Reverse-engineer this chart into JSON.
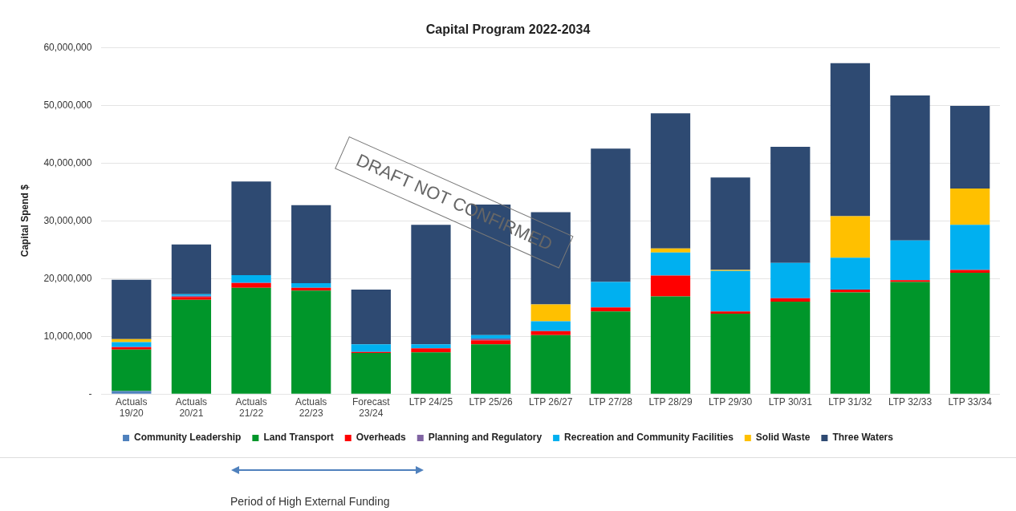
{
  "chart_data": {
    "type": "bar",
    "title": "Capital Program 2022-2034",
    "ylabel": "Capital Spend $",
    "categories": [
      "Actuals\n19/20",
      "Actuals\n20/21",
      "Actuals\n21/22",
      "Actuals\n22/23",
      "Forecast\n23/24",
      "LTP 24/25",
      "LTP 25/26",
      "LTP 26/27",
      "LTP 27/28",
      "LTP 28/29",
      "LTP 29/30",
      "LTP 30/31",
      "LTP 31/32",
      "LTP 32/33",
      "LTP 33/34"
    ],
    "stacked": true,
    "series": [
      {
        "name": "Community Leadership",
        "color": "#4f81bd",
        "values": [
          500000,
          0,
          0,
          0,
          0,
          0,
          0,
          0,
          0,
          0,
          0,
          0,
          0,
          0,
          0
        ]
      },
      {
        "name": "Land Transport",
        "color": "#00962a",
        "values": [
          7200000,
          16300000,
          18400000,
          17900000,
          7100000,
          7200000,
          8600000,
          10200000,
          14300000,
          16900000,
          13900000,
          16000000,
          17600000,
          19400000,
          21000000
        ]
      },
      {
        "name": "Overheads",
        "color": "#ff0000",
        "values": [
          400000,
          500000,
          800000,
          500000,
          200000,
          700000,
          700000,
          700000,
          700000,
          3600000,
          400000,
          600000,
          500000,
          300000,
          500000
        ]
      },
      {
        "name": "Planning and Regulatory",
        "color": "#8064a2",
        "values": [
          100000,
          200000,
          100000,
          0,
          0,
          0,
          300000,
          0,
          0,
          0,
          0,
          0,
          0,
          0,
          0
        ]
      },
      {
        "name": "Recreation and Community Facilities",
        "color": "#00b0f0",
        "values": [
          800000,
          300000,
          1300000,
          800000,
          1300000,
          700000,
          600000,
          1700000,
          4400000,
          4000000,
          7000000,
          6100000,
          5500000,
          6900000,
          7800000
        ]
      },
      {
        "name": "Solid Waste",
        "color": "#ffc000",
        "values": [
          500000,
          0,
          0,
          0,
          0,
          0,
          0,
          2900000,
          0,
          700000,
          200000,
          0,
          7200000,
          0,
          6300000
        ]
      },
      {
        "name": "Three Waters",
        "color": "#2e4a72",
        "values": [
          10300000,
          8600000,
          16200000,
          13500000,
          9500000,
          20700000,
          22600000,
          16000000,
          23100000,
          23400000,
          16000000,
          20100000,
          26500000,
          25100000,
          14300000
        ]
      }
    ],
    "ylim": [
      0,
      60000000
    ],
    "yticks": [
      {
        "value": 0,
        "label": "-"
      },
      {
        "value": 10000000,
        "label": "10,000,000"
      },
      {
        "value": 20000000,
        "label": "20,000,000"
      },
      {
        "value": 30000000,
        "label": "30,000,000"
      },
      {
        "value": 40000000,
        "label": "40,000,000"
      },
      {
        "value": 50000000,
        "label": "50,000,000"
      },
      {
        "value": 60000000,
        "label": "60,000,000"
      }
    ],
    "grid": "y",
    "legend": "bottom",
    "annotations": [
      "DRAFT NOT CONFIRMED",
      "Period of High External Funding"
    ]
  }
}
